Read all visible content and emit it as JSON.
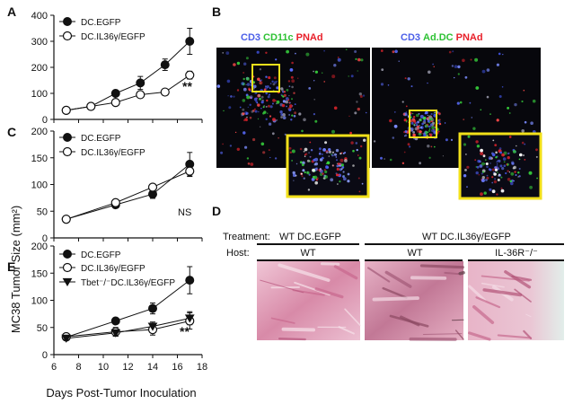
{
  "panel_labels": {
    "A": "A",
    "B": "B",
    "C": "C",
    "D": "D",
    "E": "E"
  },
  "y_axis_label": "MC38 Tumor Size (mm²)",
  "x_axis_label": "Days Post-Tumor Inoculation",
  "x_ticks": [
    "6",
    "8",
    "10",
    "12",
    "14",
    "16",
    "18"
  ],
  "chart_data": [
    {
      "panel": "A",
      "type": "line",
      "yticks": [
        "0",
        "100",
        "200",
        "300",
        "400"
      ],
      "ylim": [
        0,
        400
      ],
      "xlim": [
        6,
        18
      ],
      "series": [
        {
          "name": "DC.EGFP",
          "marker": "filled",
          "x": [
            7,
            9,
            11,
            13,
            15,
            17
          ],
          "y": [
            35,
            50,
            100,
            140,
            210,
            300
          ],
          "err": [
            0,
            0,
            8,
            25,
            22,
            50
          ]
        },
        {
          "name": "DC.IL36γ/EGFP",
          "marker": "open",
          "x": [
            7,
            9,
            11,
            13,
            15,
            17
          ],
          "y": [
            35,
            50,
            65,
            95,
            105,
            170
          ],
          "err": [
            0,
            0,
            5,
            8,
            10,
            15
          ]
        }
      ],
      "annotation": "**"
    },
    {
      "panel": "C",
      "type": "line",
      "yticks": [
        "0",
        "50",
        "100",
        "150",
        "200"
      ],
      "ylim": [
        0,
        200
      ],
      "xlim": [
        6,
        18
      ],
      "series": [
        {
          "name": "DC.EGFP",
          "marker": "filled",
          "x": [
            7,
            11,
            14,
            17
          ],
          "y": [
            35,
            62,
            82,
            138
          ],
          "err": [
            0,
            5,
            8,
            22
          ]
        },
        {
          "name": "DC.IL36γ/EGFP",
          "marker": "open",
          "x": [
            7,
            11,
            14,
            17
          ],
          "y": [
            35,
            66,
            95,
            125
          ],
          "err": [
            0,
            4,
            5,
            10
          ]
        }
      ],
      "annotation": "NS"
    },
    {
      "panel": "E",
      "type": "line",
      "yticks": [
        "0",
        "50",
        "100",
        "150",
        "200"
      ],
      "ylim": [
        0,
        200
      ],
      "xlim": [
        6,
        18
      ],
      "series": [
        {
          "name": "DC.EGFP",
          "marker": "filled",
          "x": [
            7,
            11,
            14,
            17
          ],
          "y": [
            32,
            62,
            85,
            137
          ],
          "err": [
            0,
            5,
            10,
            25
          ]
        },
        {
          "name": "DC.IL36γ/EGFP",
          "marker": "open",
          "x": [
            7,
            11,
            14,
            17
          ],
          "y": [
            33,
            42,
            46,
            62
          ],
          "err": [
            0,
            8,
            10,
            15
          ]
        },
        {
          "name": "Tbet⁻/⁻DC.IL36γ/EGFP",
          "marker": "triangle",
          "x": [
            7,
            11,
            14,
            17
          ],
          "y": [
            30,
            40,
            52,
            67
          ],
          "err": [
            0,
            6,
            8,
            12
          ]
        }
      ],
      "annotation": "**"
    }
  ],
  "panel_B": {
    "left_title": [
      {
        "text": "CD3",
        "color": "#4a5ee8"
      },
      {
        "text": "CD11c",
        "color": "#2ec234"
      },
      {
        "text": "PNAd",
        "color": "#e8202a"
      }
    ],
    "right_title": [
      {
        "text": "CD3",
        "color": "#4a5ee8"
      },
      {
        "text": "Ad.DC",
        "color": "#2ec234"
      },
      {
        "text": "PNAd",
        "color": "#e8202a"
      }
    ],
    "box_color": "#f2e01a"
  },
  "panel_D": {
    "treatment_label": "Treatment:",
    "host_label": "Host:",
    "treatment_1": "WT DC.EGFP",
    "treatment_2": "WT DC.IL36γ/EGFP",
    "host_1": "WT",
    "host_2": "WT",
    "host_3": "IL-36R⁻/⁻"
  }
}
